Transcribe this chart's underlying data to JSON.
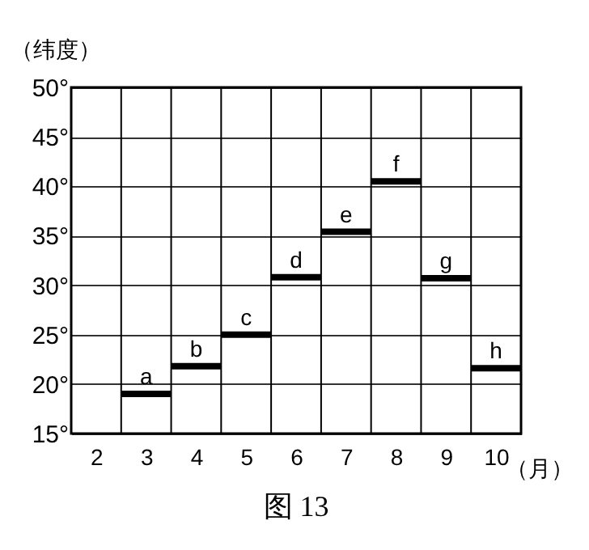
{
  "chart_data": {
    "type": "line",
    "title": "图 13",
    "xlabel": "（月）",
    "ylabel": "（纬度）",
    "xlim": [
      1.5,
      10.5
    ],
    "xticks": [
      2,
      3,
      4,
      5,
      6,
      7,
      8,
      9,
      10
    ],
    "series": [
      {
        "color": "#000000",
        "x": [
          2.5,
          3.5
        ],
        "values": [
          19.0,
          19.0
        ]
      },
      {
        "color": "#000000",
        "x": [
          3.5,
          4.5
        ],
        "values": [
          21.8,
          21.8
        ]
      },
      {
        "color": "#000000",
        "x": [
          4.5,
          5.5
        ],
        "values": [
          25.0,
          25.0
        ]
      },
      {
        "color": "#000000",
        "x": [
          5.5,
          6.5
        ],
        "values": [
          30.8,
          30.8
        ]
      },
      {
        "color": "#000000",
        "x": [
          6.5,
          7.5
        ],
        "values": [
          35.4,
          35.4
        ]
      },
      {
        "color": "#000000",
        "x": [
          7.5,
          8.5
        ],
        "values": [
          40.5,
          40.5
        ]
      },
      {
        "color": "#000000",
        "x": [
          8.5,
          9.5
        ],
        "values": [
          30.7,
          30.7
        ]
      },
      {
        "color": "#000000",
        "x": [
          9.5,
          10.5
        ],
        "values": [
          21.6,
          21.6
        ]
      }
    ],
    "ylim": [
      15,
      50
    ],
    "yticks": [
      {
        "value": 15,
        "label": "15°"
      },
      {
        "value": 20,
        "label": "20°"
      },
      {
        "value": 25,
        "label": "25°"
      },
      {
        "value": 30,
        "label": "30°"
      },
      {
        "value": 35,
        "label": "35°"
      },
      {
        "value": 40,
        "label": "40°"
      },
      {
        "value": 45,
        "label": "45°"
      },
      {
        "value": 50,
        "label": "50°"
      }
    ],
    "grid": "y",
    "ref_lines": [
      {
        "axis": "x",
        "value": 2.5,
        "color": "#000000"
      },
      {
        "axis": "x",
        "value": 3.5,
        "color": "#000000"
      },
      {
        "axis": "x",
        "value": 4.5,
        "color": "#000000"
      },
      {
        "axis": "x",
        "value": 5.5,
        "color": "#000000"
      },
      {
        "axis": "x",
        "value": 6.5,
        "color": "#000000"
      },
      {
        "axis": "x",
        "value": 7.5,
        "color": "#000000"
      },
      {
        "axis": "x",
        "value": 8.5,
        "color": "#000000"
      },
      {
        "axis": "x",
        "value": 9.5,
        "color": "#000000"
      }
    ],
    "annotations": [
      {
        "text": "a",
        "x": 3,
        "y": 19.0
      },
      {
        "text": "b",
        "x": 4,
        "y": 21.8
      },
      {
        "text": "c",
        "x": 5,
        "y": 25.0
      },
      {
        "text": "d",
        "x": 6,
        "y": 30.8
      },
      {
        "text": "e",
        "x": 7,
        "y": 35.4
      },
      {
        "text": "f",
        "x": 8,
        "y": 40.5
      },
      {
        "text": "g",
        "x": 9,
        "y": 30.7
      },
      {
        "text": "h",
        "x": 10,
        "y": 21.6
      }
    ]
  }
}
